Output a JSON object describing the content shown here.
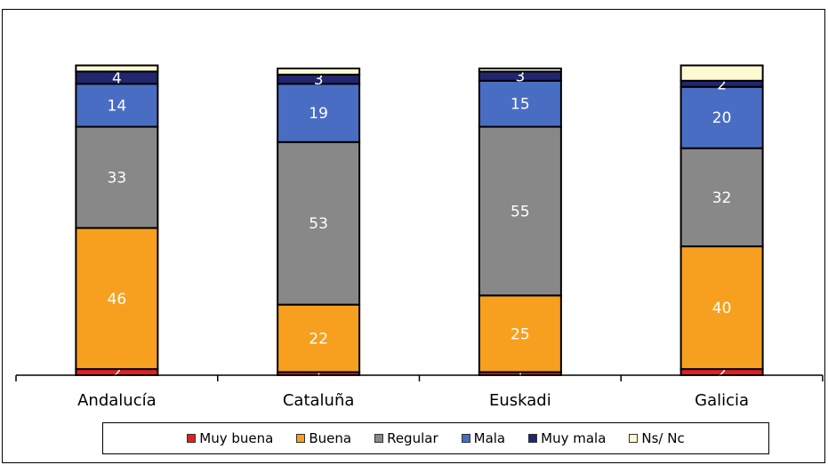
{
  "chart_data": {
    "type": "bar",
    "stacked": true,
    "categories": [
      "Andalucía",
      "Cataluña",
      "Euskadi",
      "Galicia"
    ],
    "series": [
      {
        "name": "Muy buena",
        "color": "#e02020",
        "values": [
          2,
          1,
          1,
          2
        ]
      },
      {
        "name": "Buena",
        "color": "#f7a01f",
        "values": [
          46,
          22,
          25,
          40
        ]
      },
      {
        "name": "Regular",
        "color": "#888888",
        "values": [
          33,
          53,
          55,
          32
        ]
      },
      {
        "name": "Mala",
        "color": "#4a6dc4",
        "values": [
          14,
          19,
          15,
          20
        ]
      },
      {
        "name": "Muy mala",
        "color": "#22266e",
        "values": [
          4,
          3,
          3,
          2
        ]
      },
      {
        "name": "Ns/ Nc",
        "color": "#fdfad2",
        "values": [
          2,
          2,
          1,
          5
        ]
      }
    ],
    "data_labels": [
      [
        "2",
        "46",
        "33",
        "14",
        "4",
        ""
      ],
      [
        "1",
        "22",
        "53",
        "19",
        "3",
        ""
      ],
      [
        "1",
        "25",
        "55",
        "15",
        "3",
        ""
      ],
      [
        "2",
        "40",
        "32",
        "20",
        "2",
        ""
      ]
    ],
    "ylim": [
      0,
      100
    ],
    "legend": "bottom",
    "grid": false
  }
}
